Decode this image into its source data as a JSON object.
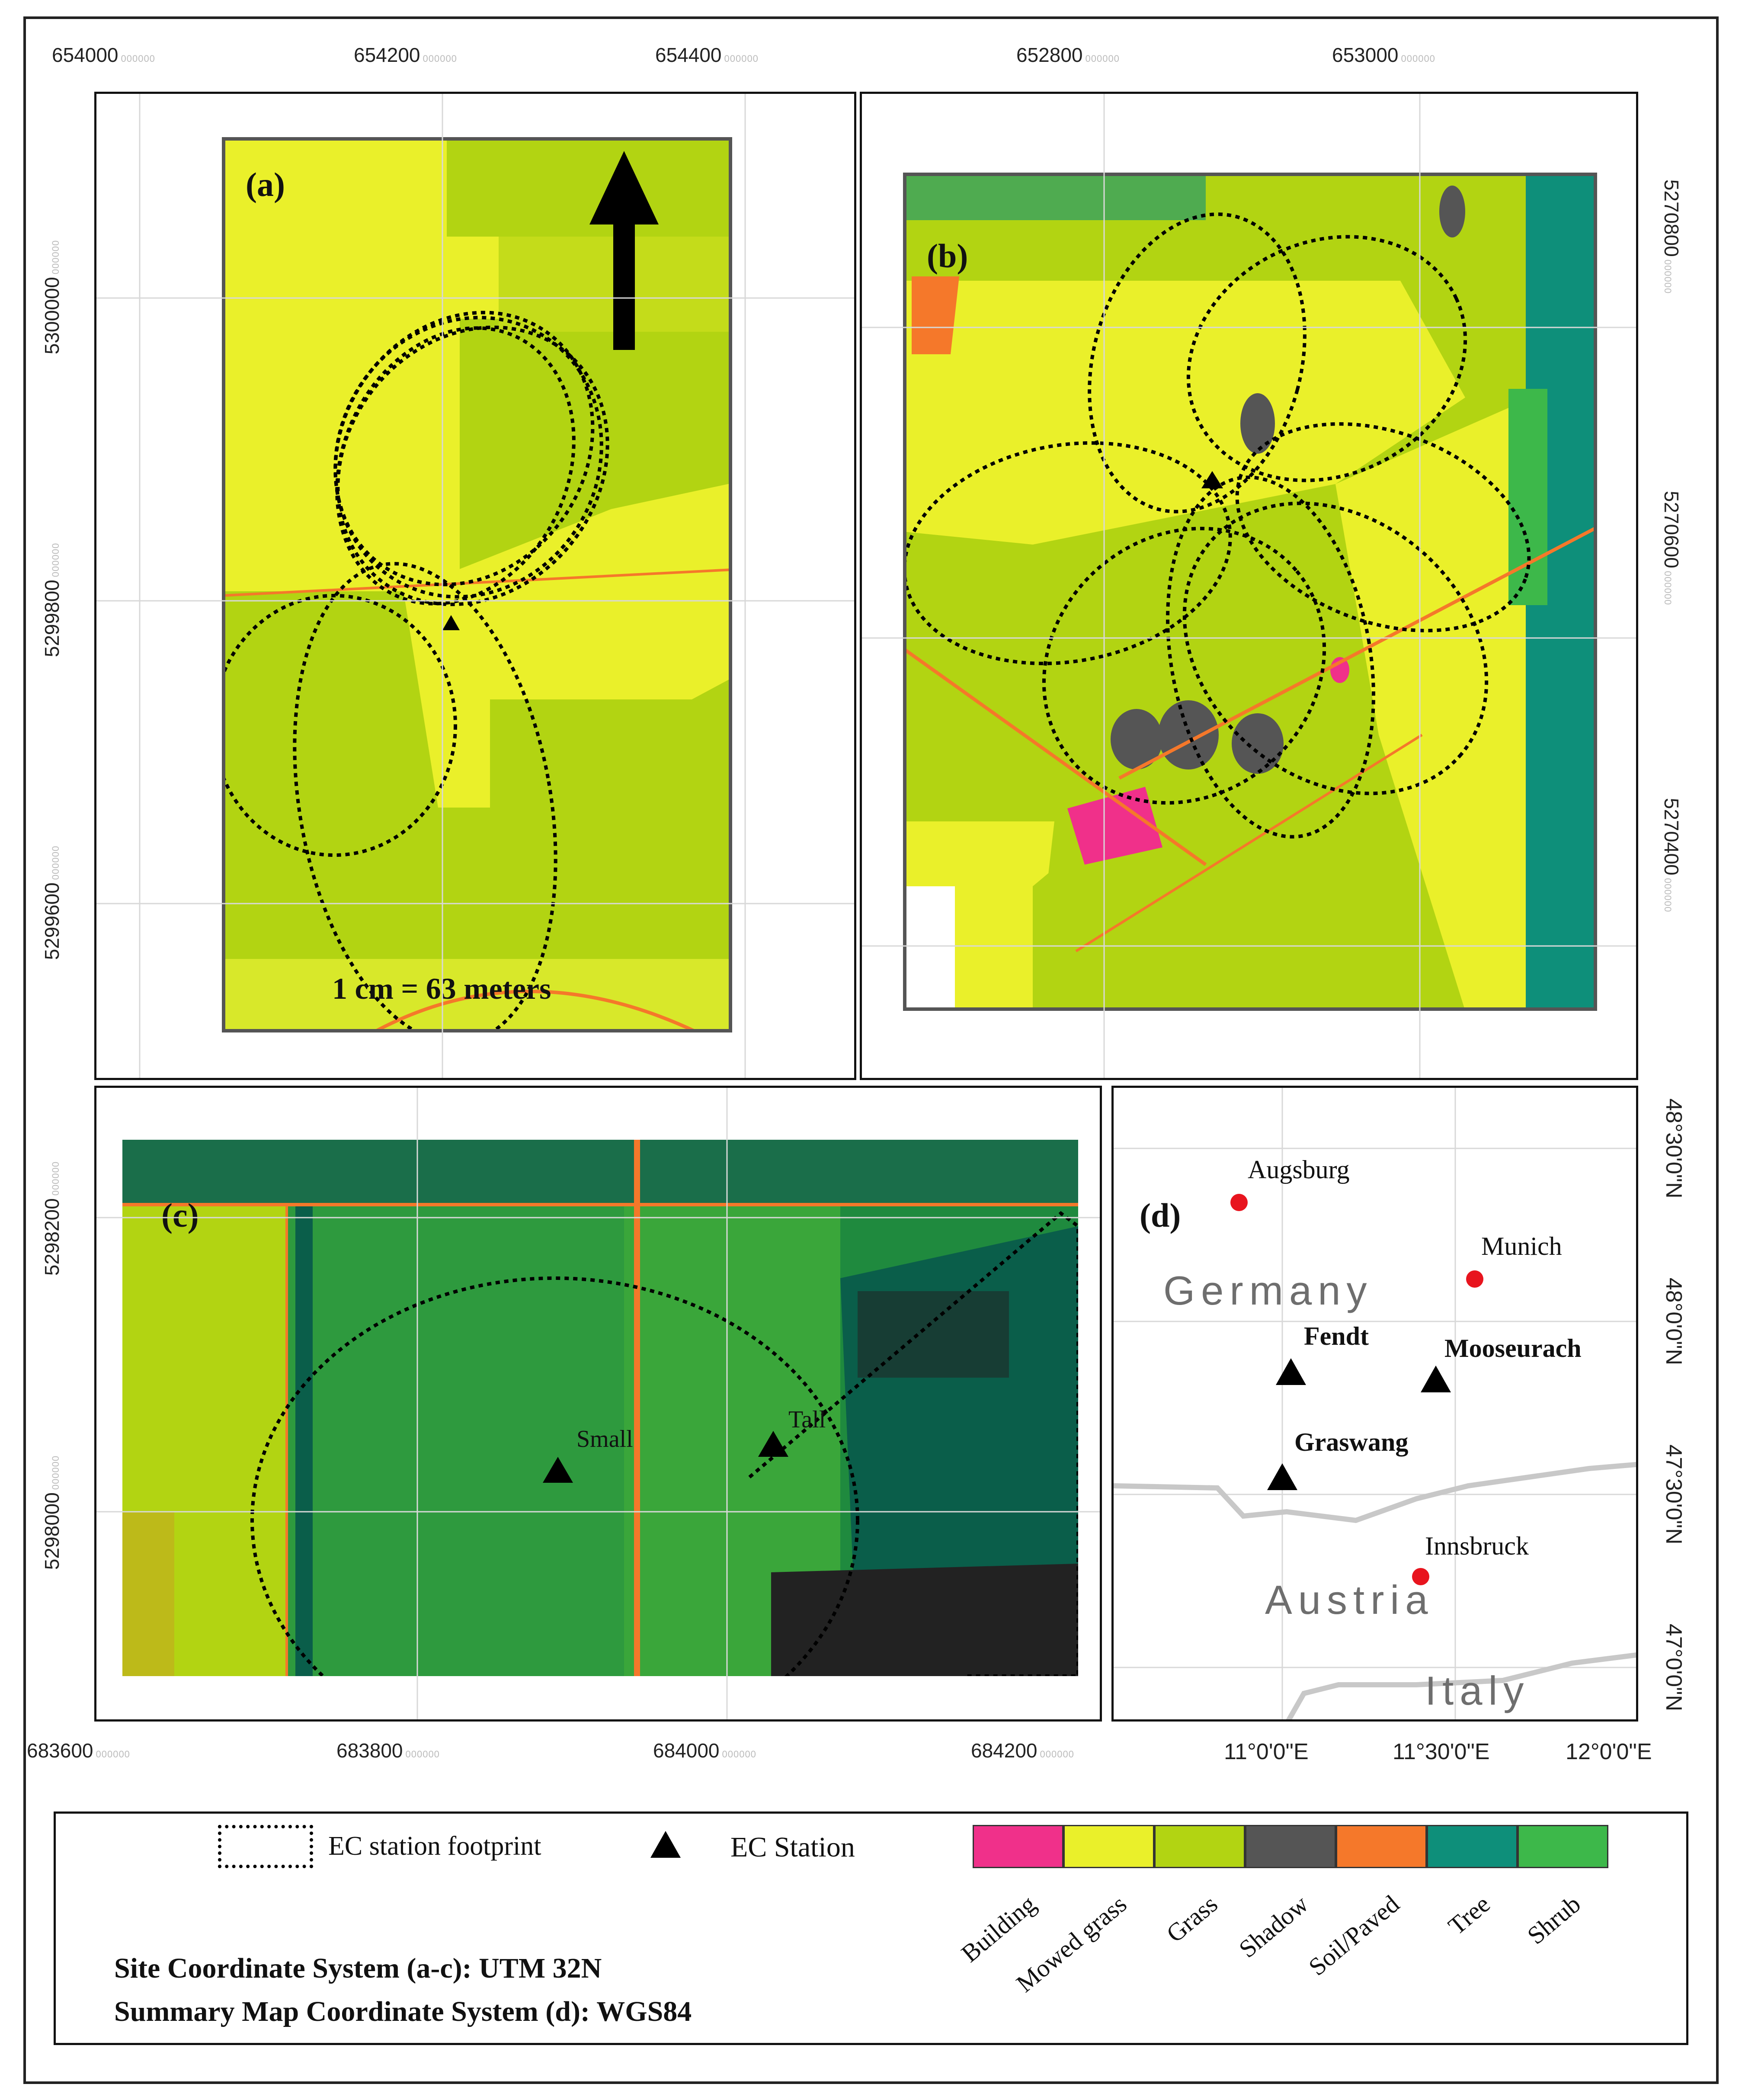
{
  "panels": {
    "a": {
      "label": "(a)",
      "scale_text": "1 cm = 63 meters",
      "x_ticks": [
        "654000",
        "654200",
        "654400"
      ],
      "y_ticks": [
        "5300000",
        "5299800",
        "5299600"
      ]
    },
    "b": {
      "label": "(b)",
      "x_ticks": [
        "652800",
        "653000"
      ],
      "y_ticks": [
        "5270800",
        "5270600",
        "5270400"
      ]
    },
    "c": {
      "label": "(c)",
      "stations": [
        "Small",
        "Tall"
      ],
      "x_ticks": [
        "683600",
        "683800",
        "684000",
        "684200"
      ],
      "y_ticks": [
        "5298200",
        "5298000"
      ]
    },
    "d": {
      "label": "(d)",
      "cities": [
        "Augsburg",
        "Munich",
        "Innsbruck"
      ],
      "stations": [
        "Fendt",
        "Mooseurach",
        "Graswang"
      ],
      "countries": [
        "Germany",
        "Austria",
        "Italy"
      ],
      "lon_ticks": [
        "11°0'0\"E",
        "11°30'0\"E",
        "12°0'0\"E"
      ],
      "lat_ticks": [
        "48°30'0\"N",
        "48°0'0\"N",
        "47°30'0\"N",
        "47°0'0\"N"
      ]
    }
  },
  "tick_suffix": "000000",
  "legend": {
    "footprint_label": "EC station footprint",
    "station_label": "EC Station",
    "coord_system_sites": "Site Coordinate System (a-c): UTM 32N",
    "coord_system_summary": "Summary Map Coordinate System (d): WGS84",
    "classes": [
      {
        "name": "Building",
        "color": "#f0308a"
      },
      {
        "name": "Mowed grass",
        "color": "#eaf02a"
      },
      {
        "name": "Grass",
        "color": "#b2d412"
      },
      {
        "name": "Shadow",
        "color": "#555555"
      },
      {
        "name": "Soil/Paved",
        "color": "#f5782a"
      },
      {
        "name": "Tree",
        "color": "#0e8f7a"
      },
      {
        "name": "Shrub",
        "color": "#3db84a"
      }
    ]
  }
}
